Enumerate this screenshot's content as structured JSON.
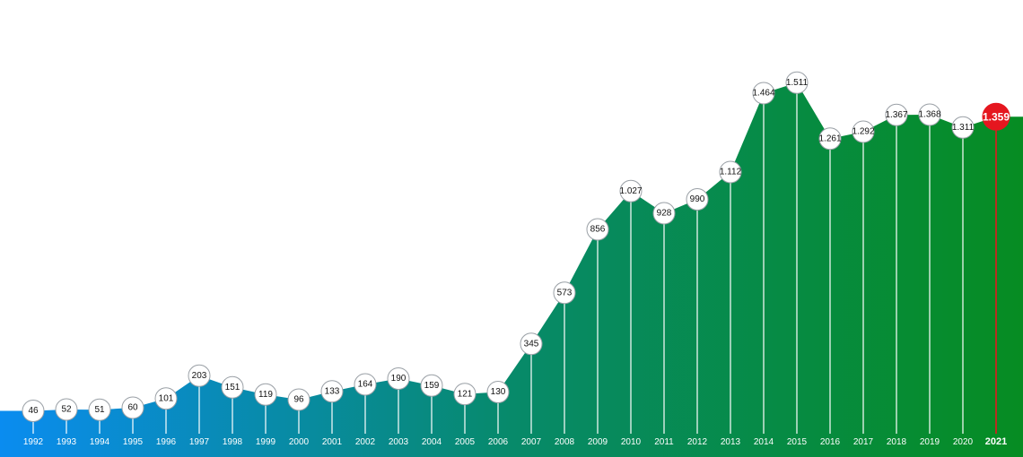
{
  "chart_data": {
    "type": "area",
    "title": "",
    "xlabel": "",
    "ylabel": "",
    "ylim": [
      0,
      1600
    ],
    "grid": false,
    "highlight": "2021",
    "colors": {
      "gradient_start": "#0a8cf0",
      "gradient_mid": "#078a6a",
      "gradient_end": "#068c22",
      "marker_fill": "#ffffff",
      "marker_stroke": "#9aa0a6",
      "highlight": "#e5161f",
      "drop_line": "#ffffff"
    },
    "categories": [
      "1992",
      "1993",
      "1994",
      "1995",
      "1996",
      "1997",
      "1998",
      "1999",
      "2000",
      "2001",
      "2002",
      "2003",
      "2004",
      "2005",
      "2006",
      "2007",
      "2008",
      "2009",
      "2010",
      "2011",
      "2012",
      "2013",
      "2014",
      "2015",
      "2016",
      "2017",
      "2018",
      "2019",
      "2020",
      "2021"
    ],
    "labels": [
      "46",
      "52",
      "51",
      "60",
      "101",
      "203",
      "151",
      "119",
      "96",
      "133",
      "164",
      "190",
      "159",
      "121",
      "130",
      "345",
      "573",
      "856",
      "1.027",
      "928",
      "990",
      "1.112",
      "1.464",
      "1.511",
      "1.261",
      "1.292",
      "1.367",
      "1.368",
      "1.311",
      "1.359"
    ],
    "values": [
      46,
      52,
      51,
      60,
      101,
      203,
      151,
      119,
      96,
      133,
      164,
      190,
      159,
      121,
      130,
      345,
      573,
      856,
      1027,
      928,
      990,
      1112,
      1464,
      1511,
      1261,
      1292,
      1367,
      1368,
      1311,
      1359
    ]
  }
}
